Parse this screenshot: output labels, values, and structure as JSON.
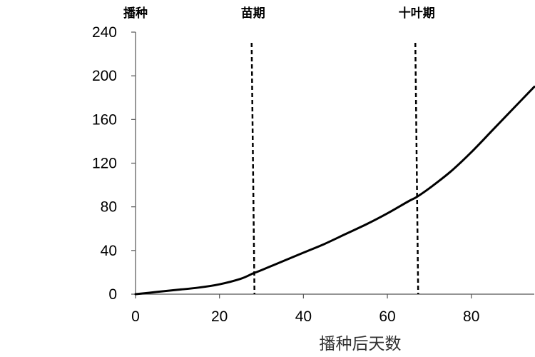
{
  "chart_data": {
    "type": "line",
    "xlabel": "播种后天数",
    "ylabel": "",
    "xlim": [
      0,
      95
    ],
    "ylim": [
      0,
      240
    ],
    "x_ticks": [
      "0",
      "20",
      "40",
      "60",
      "80"
    ],
    "y_ticks": [
      "0",
      "40",
      "80",
      "120",
      "160",
      "200",
      "240"
    ],
    "grid": false,
    "series": [
      {
        "x": [
          0,
          5,
          10,
          15,
          20,
          25,
          28,
          30,
          35,
          40,
          45,
          50,
          55,
          60,
          65,
          67,
          70,
          75,
          80,
          85,
          90,
          95
        ],
        "y": [
          0,
          2,
          4,
          6,
          9,
          14,
          19,
          22,
          30,
          38,
          46,
          55,
          64,
          74,
          85,
          89,
          97,
          112,
          130,
          150,
          170,
          190
        ]
      }
    ],
    "stages": [
      {
        "label": "播种",
        "x": 0
      },
      {
        "label": "苗期",
        "x": 28
      },
      {
        "label": "十叶期",
        "x": 67
      }
    ],
    "stage_lines": [
      28,
      67
    ],
    "line_color": "#000000"
  }
}
